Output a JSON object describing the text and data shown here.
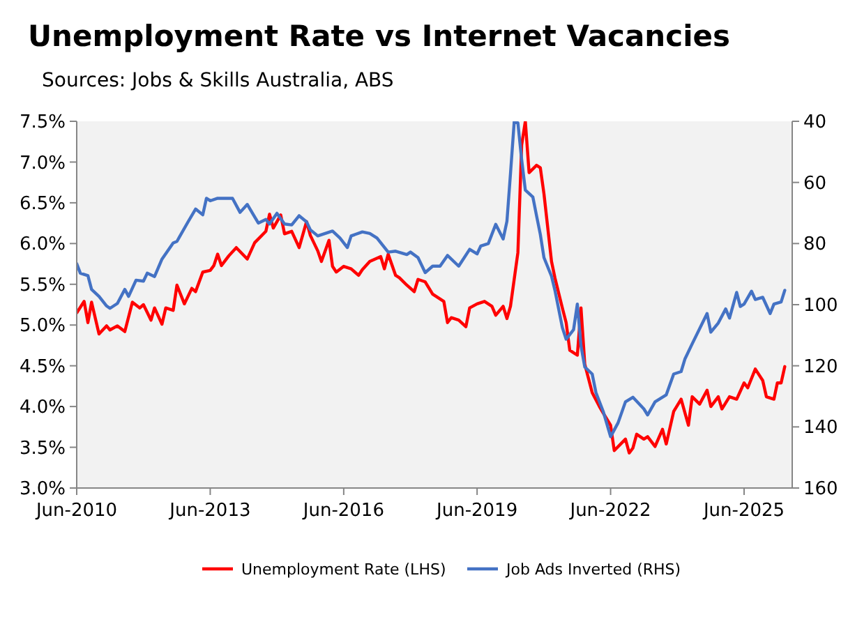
{
  "chart_data": {
    "type": "line",
    "title": "Unemployment Rate vs Internet Vacancies",
    "subtitle": "Sources: Jobs & Skills Australia, ABS",
    "xlim": [
      "2010-06",
      "2026-07"
    ],
    "xticks": [
      {
        "value": "2010-06",
        "label": "Jun-2010"
      },
      {
        "value": "2013-06",
        "label": "Jun-2013"
      },
      {
        "value": "2016-06",
        "label": "Jun-2016"
      },
      {
        "value": "2019-06",
        "label": "Jun-2019"
      },
      {
        "value": "2022-06",
        "label": "Jun-2022"
      },
      {
        "value": "2025-06",
        "label": "Jun-2025"
      }
    ],
    "ylim": [
      3,
      7.5
    ],
    "yticks": [
      {
        "value": 3,
        "label": "3.0%"
      },
      {
        "value": 3.5,
        "label": "3.5%"
      },
      {
        "value": 4,
        "label": "4.0%"
      },
      {
        "value": 4.5,
        "label": "4.5%"
      },
      {
        "value": 5,
        "label": "5.0%"
      },
      {
        "value": 5.5,
        "label": "5.5%"
      },
      {
        "value": 6,
        "label": "6.0%"
      },
      {
        "value": 6.5,
        "label": "6.5%"
      },
      {
        "value": 7,
        "label": "7.0%"
      },
      {
        "value": 7.5,
        "label": "7.5%"
      }
    ],
    "y2lim": [
      160,
      40
    ],
    "y2ticks": [
      40,
      60,
      80,
      100,
      120,
      140,
      160
    ],
    "legend": "bottom",
    "series": [
      {
        "name": "Unemployment Rate (LHS)",
        "color": "#ff0000",
        "x": [
          "2010-06",
          "2010-08",
          "2010-09",
          "2010-10",
          "2010-12",
          "2011-02",
          "2011-03",
          "2011-05",
          "2011-07",
          "2011-09",
          "2011-11",
          "2011-12",
          "2012-02",
          "2012-03",
          "2012-05",
          "2012-06",
          "2012-08",
          "2012-09",
          "2012-11",
          "2013-01",
          "2013-02",
          "2013-04",
          "2013-06",
          "2013-07",
          "2013-08",
          "2013-09",
          "2013-11",
          "2014-01",
          "2014-04",
          "2014-06",
          "2014-09",
          "2014-10",
          "2014-11",
          "2015-01",
          "2015-02",
          "2015-04",
          "2015-06",
          "2015-08",
          "2015-09",
          "2015-11",
          "2015-12",
          "2016-02",
          "2016-03",
          "2016-04",
          "2016-06",
          "2016-08",
          "2016-10",
          "2016-11",
          "2017-01",
          "2017-04",
          "2017-05",
          "2017-06",
          "2017-08",
          "2017-09",
          "2017-11",
          "2018-01",
          "2018-02",
          "2018-04",
          "2018-06",
          "2018-09",
          "2018-10",
          "2018-11",
          "2019-01",
          "2019-03",
          "2019-04",
          "2019-06",
          "2019-08",
          "2019-10",
          "2019-11",
          "2020-01",
          "2020-02",
          "2020-03",
          "2020-05",
          "2020-06",
          "2020-07",
          "2020-08",
          "2020-10",
          "2020-11",
          "2020-12",
          "2021-02",
          "2021-03",
          "2021-05",
          "2021-06",
          "2021-07",
          "2021-09",
          "2021-10",
          "2021-11",
          "2022-01",
          "2022-03",
          "2022-04",
          "2022-06",
          "2022-07",
          "2022-10",
          "2022-11",
          "2022-12",
          "2023-01",
          "2023-03",
          "2023-04",
          "2023-06",
          "2023-08",
          "2023-09",
          "2023-11",
          "2024-01",
          "2024-03",
          "2024-04",
          "2024-06",
          "2024-08",
          "2024-09",
          "2024-11",
          "2024-12",
          "2025-02",
          "2025-04",
          "2025-06",
          "2025-07",
          "2025-09",
          "2025-11",
          "2025-12",
          "2026-02",
          "2026-03",
          "2026-04",
          "2026-05"
        ],
        "values": [
          5.15,
          5.29,
          5.03,
          5.28,
          4.89,
          4.99,
          4.94,
          4.99,
          4.92,
          5.28,
          5.21,
          5.25,
          5.06,
          5.21,
          5.01,
          5.21,
          5.18,
          5.49,
          5.26,
          5.45,
          5.41,
          5.65,
          5.67,
          5.73,
          5.87,
          5.73,
          5.85,
          5.95,
          5.81,
          6.01,
          6.15,
          6.36,
          6.19,
          6.35,
          6.12,
          6.15,
          5.95,
          6.27,
          6.1,
          5.91,
          5.78,
          6.04,
          5.72,
          5.65,
          5.72,
          5.69,
          5.61,
          5.68,
          5.78,
          5.84,
          5.69,
          5.87,
          5.61,
          5.58,
          5.49,
          5.41,
          5.56,
          5.53,
          5.38,
          5.29,
          5.03,
          5.09,
          5.06,
          4.98,
          5.21,
          5.26,
          5.29,
          5.23,
          5.12,
          5.23,
          5.08,
          5.23,
          5.89,
          7.21,
          7.5,
          6.87,
          6.96,
          6.93,
          6.61,
          5.78,
          5.58,
          5.21,
          5.03,
          4.69,
          4.63,
          5.21,
          4.52,
          4.17,
          4.0,
          3.92,
          3.77,
          3.46,
          3.6,
          3.43,
          3.49,
          3.66,
          3.6,
          3.63,
          3.51,
          3.72,
          3.54,
          3.94,
          4.09,
          3.77,
          4.12,
          4.03,
          4.2,
          4.0,
          4.12,
          3.97,
          4.12,
          4.09,
          4.29,
          4.23,
          4.46,
          4.32,
          4.12,
          4.09,
          4.29,
          4.29,
          4.49
        ]
      },
      {
        "name": "Job Ads Inverted (RHS)",
        "color": "#4472c4",
        "axis": "y2",
        "x": [
          "2010-06",
          "2010-07",
          "2010-09",
          "2010-10",
          "2010-12",
          "2011-02",
          "2011-03",
          "2011-05",
          "2011-07",
          "2011-08",
          "2011-10",
          "2011-12",
          "2012-01",
          "2012-03",
          "2012-05",
          "2012-08",
          "2012-09",
          "2012-12",
          "2013-02",
          "2013-04",
          "2013-05",
          "2013-06",
          "2013-08",
          "2013-11",
          "2013-12",
          "2014-02",
          "2014-04",
          "2014-06",
          "2014-07",
          "2014-09",
          "2014-10",
          "2014-12",
          "2015-02",
          "2015-04",
          "2015-06",
          "2015-08",
          "2015-09",
          "2015-11",
          "2016-03",
          "2016-05",
          "2016-07",
          "2016-08",
          "2016-11",
          "2017-01",
          "2017-03",
          "2017-06",
          "2017-08",
          "2017-11",
          "2017-12",
          "2018-02",
          "2018-04",
          "2018-06",
          "2018-08",
          "2018-10",
          "2019-01",
          "2019-04",
          "2019-06",
          "2019-07",
          "2019-09",
          "2019-11",
          "2020-01",
          "2020-02",
          "2020-03",
          "2020-04",
          "2020-05",
          "2020-06",
          "2020-07",
          "2020-09",
          "2020-10",
          "2020-11",
          "2020-12",
          "2021-02",
          "2021-03",
          "2021-05",
          "2021-06",
          "2021-08",
          "2021-09",
          "2021-10",
          "2021-11",
          "2022-01",
          "2022-02",
          "2022-04",
          "2022-06",
          "2022-08",
          "2022-10",
          "2022-12",
          "2023-03",
          "2023-04",
          "2023-06",
          "2023-09",
          "2023-11",
          "2024-01",
          "2024-02",
          "2024-04",
          "2024-08",
          "2024-09",
          "2024-11",
          "2025-01",
          "2025-02",
          "2025-04",
          "2025-05",
          "2025-06",
          "2025-08",
          "2025-09",
          "2025-11",
          "2026-01",
          "2026-02",
          "2026-04",
          "2026-05"
        ],
        "values": [
          86.6,
          89.7,
          90.5,
          95.0,
          97.3,
          100.4,
          101.2,
          99.6,
          95.0,
          97.3,
          92.0,
          92.3,
          89.7,
          90.8,
          85.1,
          79.8,
          79.3,
          72.9,
          68.7,
          70.6,
          65.2,
          66.0,
          65.2,
          65.2,
          65.2,
          69.8,
          67.2,
          71.3,
          73.3,
          72.1,
          73.6,
          70.1,
          73.6,
          73.9,
          70.9,
          72.9,
          75.5,
          77.5,
          75.9,
          78.2,
          81.3,
          77.5,
          76.2,
          76.7,
          78.2,
          82.8,
          82.5,
          83.6,
          82.8,
          84.6,
          89.5,
          87.4,
          87.4,
          83.9,
          87.4,
          81.9,
          83.4,
          80.8,
          80.0,
          73.7,
          78.5,
          72.7,
          57.2,
          40,
          40.5,
          52.6,
          62.5,
          64.8,
          70.9,
          77.0,
          84.6,
          90.7,
          95.3,
          107.5,
          111.3,
          108.2,
          99.8,
          113.5,
          120.4,
          122.7,
          128.8,
          134.9,
          143.2,
          138.7,
          131.8,
          130.3,
          134.1,
          136.1,
          131.8,
          129.5,
          122.7,
          121.9,
          117.8,
          112.8,
          102.9,
          109.0,
          106.0,
          101.4,
          104.4,
          96.0,
          100.6,
          99.8,
          95.6,
          98.3,
          97.6,
          102.9,
          99.8,
          99.1,
          95.3
        ]
      }
    ]
  }
}
